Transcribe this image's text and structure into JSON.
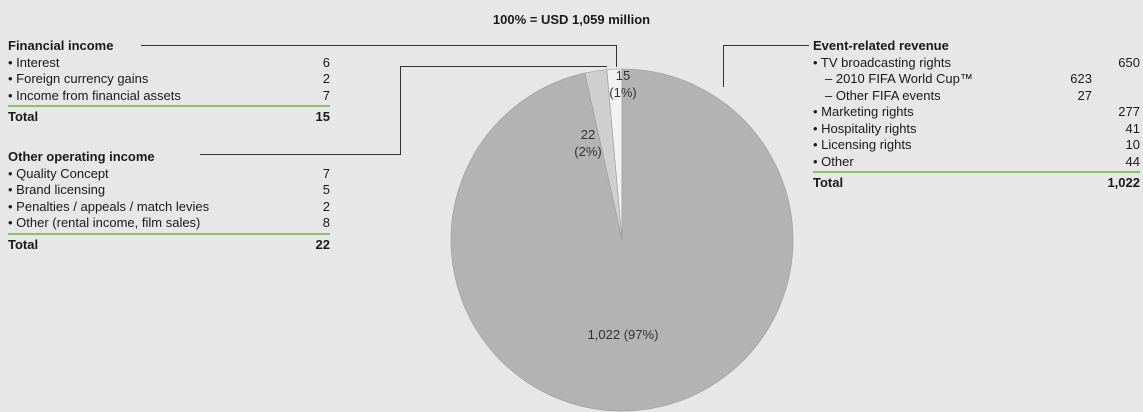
{
  "title": "100% = USD 1,059 million",
  "financial_income": {
    "heading": "Financial income",
    "items": [
      {
        "label": "• Interest",
        "value": "6"
      },
      {
        "label": "• Foreign currency gains",
        "value": "2"
      },
      {
        "label": "• Income from financial assets",
        "value": "7"
      }
    ],
    "total_label": "Total",
    "total_value": "15"
  },
  "other_operating_income": {
    "heading": "Other operating income",
    "items": [
      {
        "label": "• Quality Concept",
        "value": "7"
      },
      {
        "label": "• Brand licensing",
        "value": "5"
      },
      {
        "label": "• Penalties / appeals / match levies",
        "value": "2"
      },
      {
        "label": "• Other (rental income, film sales)",
        "value": "8"
      }
    ],
    "total_label": "Total",
    "total_value": "22"
  },
  "event_related_revenue": {
    "heading": "Event-related revenue",
    "items": [
      {
        "label": "• TV broadcasting rights",
        "value": "650",
        "sub": false
      },
      {
        "label": "– 2010 FIFA World Cup™",
        "value": "623",
        "sub": true
      },
      {
        "label": "– Other FIFA events",
        "value": "27",
        "sub": true
      },
      {
        "label": "• Marketing rights",
        "value": "277",
        "sub": false
      },
      {
        "label": "• Hospitality rights",
        "value": "41",
        "sub": false
      },
      {
        "label": "• Licensing rights",
        "value": "10",
        "sub": false
      },
      {
        "label": "• Other",
        "value": "44",
        "sub": false
      }
    ],
    "total_label": "Total",
    "total_value": "1,022"
  },
  "chart_data": {
    "type": "pie",
    "title": "100% = USD 1,059 million",
    "slices": [
      {
        "label": "Event-related revenue",
        "value": 1022,
        "percent": "97%",
        "display": "1,022 (97%)",
        "color": "#b3b3b3"
      },
      {
        "label": "Other operating income",
        "value": 22,
        "percent": "2%",
        "display_value": "22",
        "display_percent": "(2%)",
        "color": "#cfcfcf"
      },
      {
        "label": "Financial income",
        "value": 15,
        "percent": "1%",
        "display_value": "15",
        "display_percent": "(1%)",
        "color": "#f2f2f2"
      }
    ],
    "colors": {
      "accent_rule": "#88c266",
      "background": "#e7e7e8",
      "leader_line": "#333333"
    }
  }
}
